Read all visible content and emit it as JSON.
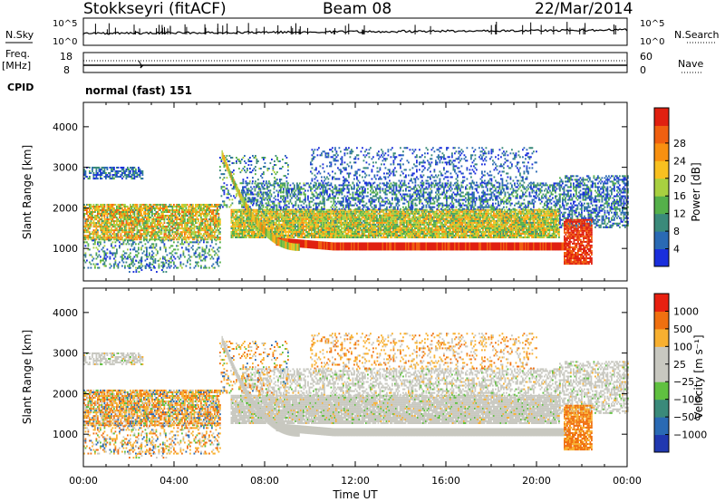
{
  "header": {
    "station": "Stokkseyri (fitACF)",
    "beam": "Beam 08",
    "date": "22/Mar/2014"
  },
  "side_labels": {
    "nsky": "N.Sky",
    "nsearch": "N.Search",
    "freq": "Freq.",
    "mhz": "[MHz]",
    "nave": "Nave",
    "cpid": "CPID"
  },
  "small_panels": {
    "noise_ticks_left": [
      "10^5",
      "10^0"
    ],
    "noise_ticks_right": [
      "10^5",
      "10^0"
    ],
    "freq_ticks": [
      "18",
      "8"
    ],
    "nave_ticks": [
      "60",
      "0"
    ],
    "cpid_text": "normal (fast) 151"
  },
  "chart_data": [
    {
      "type": "heatmap",
      "name": "power",
      "ylabel": "Slant Range [km]",
      "ylim": [
        200,
        4600
      ],
      "y_ticks": [
        "1000",
        "2000",
        "3000",
        "4000"
      ],
      "x_ticks": [
        "00:00",
        "04:00",
        "08:00",
        "12:00",
        "16:00",
        "20:00",
        "00:00"
      ],
      "xlim_hours": [
        0,
        24
      ],
      "colorbar": {
        "label": "Power [dB]",
        "ticks": [
          "4",
          "8",
          "12",
          "16",
          "20",
          "24",
          "28"
        ],
        "colors": [
          "#1a2edc",
          "#2a6ab4",
          "#3a8a7a",
          "#55b04a",
          "#a8d040",
          "#f8c020",
          "#f89010",
          "#f06010",
          "#e02010"
        ]
      }
    },
    {
      "type": "heatmap",
      "name": "velocity",
      "ylabel": "Slant Range [km]",
      "ylim": [
        200,
        4600
      ],
      "y_ticks": [
        "1000",
        "2000",
        "3000",
        "4000"
      ],
      "x_ticks": [
        "00:00",
        "04:00",
        "08:00",
        "12:00",
        "16:00",
        "20:00",
        "00:00"
      ],
      "xlabel": "Time UT",
      "xlim_hours": [
        0,
        24
      ],
      "colorbar": {
        "label": "Velocity [m s⁻¹]",
        "ticks": [
          "1000",
          "500",
          "100",
          "25",
          "−25",
          "−100",
          "−500",
          "−1000"
        ],
        "colors": [
          "#2038b0",
          "#2a6ab4",
          "#3a8a7a",
          "#60c040",
          "#c8c8c0",
          "#c8c8c0",
          "#f8b030",
          "#f07010",
          "#e82010"
        ]
      }
    }
  ]
}
